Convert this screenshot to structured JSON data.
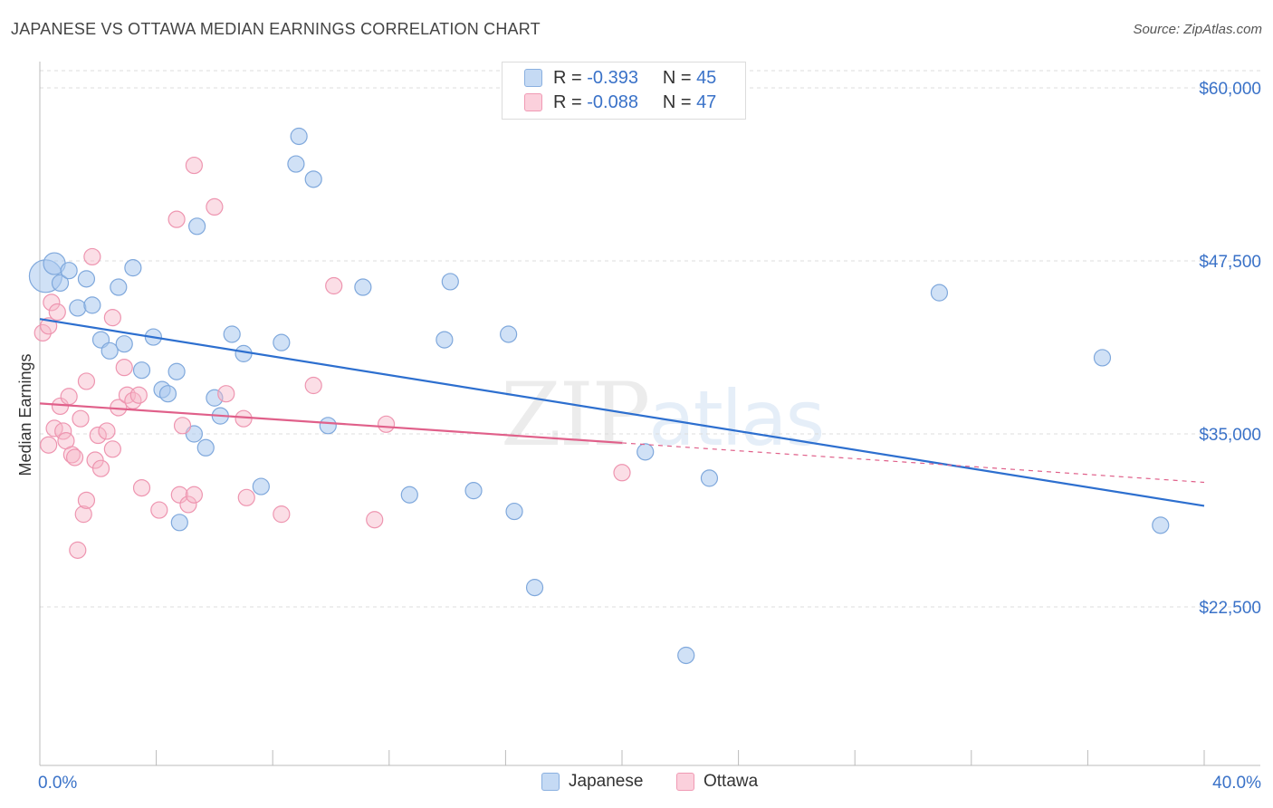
{
  "title": "JAPANESE VS OTTAWA MEDIAN EARNINGS CORRELATION CHART",
  "source": "Source: ZipAtlas.com",
  "legend_top": {
    "japanese": {
      "r_label": "R =",
      "r_value": "-0.393",
      "n_label": "N =",
      "n_value": "45"
    },
    "ottawa": {
      "r_label": "R =",
      "r_value": "-0.088",
      "n_label": "N =",
      "n_value": "47"
    }
  },
  "legend_bottom": {
    "japanese": "Japanese",
    "ottawa": "Ottawa"
  },
  "watermark": {
    "zip": "ZIP",
    "atlas": "atlas"
  },
  "colors": {
    "japanese": "#a9c8ee",
    "japanese_line": "#2d6fcf",
    "ottawa": "#f7b6c8",
    "ottawa_line": "#e0608a",
    "tick_label": "#3a72c8"
  },
  "chart_data": {
    "type": "scatter",
    "xlabel": "",
    "ylabel": "Median Earnings",
    "xlim": [
      0,
      40
    ],
    "ylim": [
      12500,
      61000
    ],
    "x_tick_labels": {
      "left": "0.0%",
      "right": "40.0%"
    },
    "y_ticks": [
      {
        "value": 60000,
        "label": "$60,000"
      },
      {
        "value": 47500,
        "label": "$47,500"
      },
      {
        "value": 35000,
        "label": "$35,000"
      },
      {
        "value": 22500,
        "label": "$22,500"
      }
    ],
    "grid": true,
    "series": [
      {
        "name": "Japanese",
        "trend": {
          "x0": 0,
          "y0": 43300,
          "x1": 40,
          "y1": 29800,
          "solid_until": 40
        },
        "points": [
          [
            0.2,
            46400
          ],
          [
            0.5,
            47300
          ],
          [
            0.7,
            45900
          ],
          [
            1.0,
            46800
          ],
          [
            1.3,
            44100
          ],
          [
            1.6,
            46200
          ],
          [
            1.8,
            44300
          ],
          [
            2.1,
            41800
          ],
          [
            2.4,
            41000
          ],
          [
            2.7,
            45600
          ],
          [
            2.9,
            41500
          ],
          [
            3.2,
            47000
          ],
          [
            3.5,
            39600
          ],
          [
            3.9,
            42000
          ],
          [
            4.2,
            38200
          ],
          [
            4.4,
            37900
          ],
          [
            4.7,
            39500
          ],
          [
            4.8,
            28600
          ],
          [
            5.3,
            35000
          ],
          [
            5.4,
            50000
          ],
          [
            5.7,
            34000
          ],
          [
            6.0,
            37600
          ],
          [
            6.2,
            36300
          ],
          [
            6.6,
            42200
          ],
          [
            7.0,
            40800
          ],
          [
            7.6,
            31200
          ],
          [
            8.3,
            41600
          ],
          [
            8.9,
            56500
          ],
          [
            8.8,
            54500
          ],
          [
            9.4,
            53400
          ],
          [
            9.9,
            35600
          ],
          [
            11.1,
            45600
          ],
          [
            12.7,
            30600
          ],
          [
            13.9,
            41800
          ],
          [
            14.1,
            46000
          ],
          [
            14.9,
            30900
          ],
          [
            16.1,
            42200
          ],
          [
            16.3,
            29400
          ],
          [
            17.0,
            23900
          ],
          [
            20.8,
            33700
          ],
          [
            22.2,
            19000
          ],
          [
            23.0,
            31800
          ],
          [
            30.9,
            45200
          ],
          [
            36.5,
            40500
          ],
          [
            38.5,
            28400
          ]
        ]
      },
      {
        "name": "Ottawa",
        "trend": {
          "x0": 0,
          "y0": 37200,
          "x1": 40,
          "y1": 31500,
          "solid_until": 20
        },
        "points": [
          [
            0.1,
            42300
          ],
          [
            0.3,
            42800
          ],
          [
            0.3,
            34200
          ],
          [
            0.4,
            44500
          ],
          [
            0.5,
            35400
          ],
          [
            0.6,
            43800
          ],
          [
            0.7,
            37000
          ],
          [
            0.8,
            35200
          ],
          [
            0.9,
            34500
          ],
          [
            1.0,
            37700
          ],
          [
            1.1,
            33500
          ],
          [
            1.2,
            33300
          ],
          [
            1.3,
            26600
          ],
          [
            1.4,
            36100
          ],
          [
            1.5,
            29200
          ],
          [
            1.6,
            30200
          ],
          [
            1.6,
            38800
          ],
          [
            1.8,
            47800
          ],
          [
            1.9,
            33100
          ],
          [
            2.0,
            34900
          ],
          [
            2.1,
            32500
          ],
          [
            2.3,
            35200
          ],
          [
            2.5,
            43400
          ],
          [
            2.5,
            33900
          ],
          [
            2.7,
            36900
          ],
          [
            2.9,
            39800
          ],
          [
            3.0,
            37800
          ],
          [
            3.2,
            37400
          ],
          [
            3.4,
            37800
          ],
          [
            3.5,
            31100
          ],
          [
            4.1,
            29500
          ],
          [
            4.7,
            50500
          ],
          [
            4.8,
            30600
          ],
          [
            4.9,
            35600
          ],
          [
            5.1,
            29900
          ],
          [
            5.3,
            30600
          ],
          [
            5.3,
            54400
          ],
          [
            6.0,
            51400
          ],
          [
            6.4,
            37900
          ],
          [
            7.0,
            36100
          ],
          [
            7.1,
            30400
          ],
          [
            8.3,
            29200
          ],
          [
            9.4,
            38500
          ],
          [
            10.1,
            45700
          ],
          [
            11.5,
            28800
          ],
          [
            11.9,
            35700
          ],
          [
            20.0,
            32200
          ]
        ]
      }
    ]
  }
}
